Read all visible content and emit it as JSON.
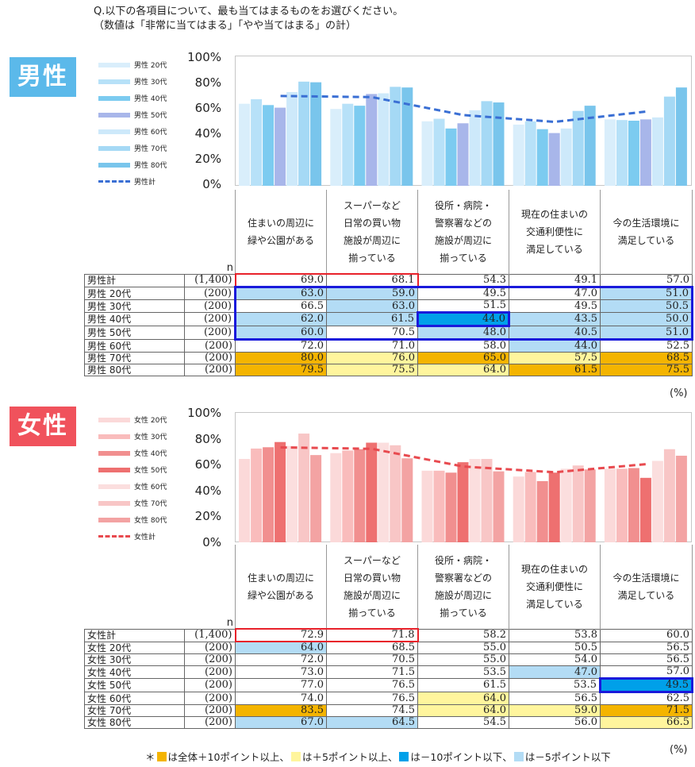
{
  "question": {
    "line1": "Q.以下の各項目について、最も当てはまるものをお選びください。",
    "line2": "（数値は「非常に当てはまる」「やや当てはまる」の計）"
  },
  "colors": {
    "male_badge": "#5bb9ea",
    "female_badge": "#f0525c",
    "plus10": "#f4b400",
    "plus5": "#fff59d",
    "minus10": "#00a0e9",
    "minus5": "#b3dcf5",
    "male_highlight": "#1a1adb",
    "total_highlight": "#e8212a",
    "male_line": "#3a6fd4",
    "female_line": "#e84a4f"
  },
  "male": {
    "badge": "男性",
    "legend": [
      "男性 20代",
      "男性 30代",
      "男性 40代",
      "男性 50代",
      "男性 60代",
      "男性 70代",
      "男性 80代",
      "男性計"
    ],
    "series_colors": [
      "#d9eefb",
      "#b7e1f8",
      "#7ccbf0",
      "#a8b6ea",
      "#cde9fa",
      "#a5d9f5",
      "#79c5ec"
    ],
    "header_n": "n",
    "unit": "(%)",
    "rows": [
      {
        "label": "男性計",
        "n": "(1,400)",
        "values": [
          "69.0",
          "68.1",
          "54.3",
          "49.1",
          "57.0"
        ],
        "cls": [
          "",
          "",
          "",
          "",
          ""
        ]
      },
      {
        "label": "男性 20代",
        "n": "(200)",
        "values": [
          "63.0",
          "59.0",
          "49.5",
          "47.0",
          "51.0"
        ],
        "cls": [
          "m5",
          "m5",
          "",
          "",
          "m5"
        ]
      },
      {
        "label": "男性 30代",
        "n": "(200)",
        "values": [
          "66.5",
          "63.0",
          "51.5",
          "49.5",
          "50.5"
        ],
        "cls": [
          "",
          "m5",
          "",
          "",
          "m5"
        ]
      },
      {
        "label": "男性 40代",
        "n": "(200)",
        "values": [
          "62.0",
          "61.5",
          "44.0",
          "43.5",
          "50.0"
        ],
        "cls": [
          "m5",
          "m5",
          "m10",
          "m5",
          "m5"
        ]
      },
      {
        "label": "男性 50代",
        "n": "(200)",
        "values": [
          "60.0",
          "70.5",
          "48.0",
          "40.5",
          "51.0"
        ],
        "cls": [
          "m5",
          "",
          "m5",
          "m5",
          "m5"
        ]
      },
      {
        "label": "男性 60代",
        "n": "(200)",
        "values": [
          "72.0",
          "71.0",
          "58.0",
          "44.0",
          "52.5"
        ],
        "cls": [
          "",
          "",
          "",
          "m5",
          ""
        ]
      },
      {
        "label": "男性 70代",
        "n": "(200)",
        "values": [
          "80.0",
          "76.0",
          "65.0",
          "57.5",
          "68.5"
        ],
        "cls": [
          "p10",
          "p5",
          "p10",
          "p5",
          "p10"
        ]
      },
      {
        "label": "男性 80代",
        "n": "(200)",
        "values": [
          "79.5",
          "75.5",
          "64.0",
          "61.5",
          "75.5"
        ],
        "cls": [
          "p10",
          "p5",
          "p5",
          "p10",
          "p10"
        ]
      }
    ]
  },
  "female": {
    "badge": "女性",
    "legend": [
      "女性 20代",
      "女性 30代",
      "女性 40代",
      "女性 50代",
      "女性 60代",
      "女性 70代",
      "女性 80代",
      "女性計"
    ],
    "series_colors": [
      "#fbd9d9",
      "#f9bcbc",
      "#f18f8f",
      "#ee7070",
      "#fbdede",
      "#f8c6c6",
      "#f3a3a3"
    ],
    "header_n": "n",
    "unit": "(%)",
    "rows": [
      {
        "label": "女性計",
        "n": "(1,400)",
        "values": [
          "72.9",
          "71.8",
          "58.2",
          "53.8",
          "60.0"
        ],
        "cls": [
          "",
          "",
          "",
          "",
          ""
        ]
      },
      {
        "label": "女性 20代",
        "n": "(200)",
        "values": [
          "64.0",
          "68.5",
          "55.0",
          "50.5",
          "56.5"
        ],
        "cls": [
          "m5",
          "",
          "",
          "",
          ""
        ]
      },
      {
        "label": "女性 30代",
        "n": "(200)",
        "values": [
          "72.0",
          "70.5",
          "55.0",
          "54.0",
          "56.5"
        ],
        "cls": [
          "",
          "",
          "",
          "",
          ""
        ]
      },
      {
        "label": "女性 40代",
        "n": "(200)",
        "values": [
          "73.0",
          "71.5",
          "53.5",
          "47.0",
          "57.0"
        ],
        "cls": [
          "",
          "",
          "",
          "m5",
          ""
        ]
      },
      {
        "label": "女性 50代",
        "n": "(200)",
        "values": [
          "77.0",
          "76.5",
          "61.5",
          "53.5",
          "49.5"
        ],
        "cls": [
          "",
          "",
          "",
          "",
          "m10"
        ]
      },
      {
        "label": "女性 60代",
        "n": "(200)",
        "values": [
          "74.0",
          "76.5",
          "64.0",
          "56.5",
          "62.5"
        ],
        "cls": [
          "",
          "",
          "p5",
          "",
          ""
        ]
      },
      {
        "label": "女性 70代",
        "n": "(200)",
        "values": [
          "83.5",
          "74.5",
          "64.0",
          "59.0",
          "71.5"
        ],
        "cls": [
          "p10",
          "",
          "p5",
          "p5",
          "p10"
        ]
      },
      {
        "label": "女性 80代",
        "n": "(200)",
        "values": [
          "67.0",
          "64.5",
          "54.5",
          "56.0",
          "66.5"
        ],
        "cls": [
          "m5",
          "m5",
          "",
          "",
          "p5"
        ]
      }
    ]
  },
  "categories": [
    [
      "住まいの周辺に",
      "緑や公園がある"
    ],
    [
      "スーパーなど",
      "日常の買い物",
      "施設が周辺に",
      "揃っている"
    ],
    [
      "役所・病院・",
      "警察署などの",
      "施設が周辺に",
      "揃っている"
    ],
    [
      "現在の住まいの",
      "交通利便性に",
      "満足している"
    ],
    [
      "今の生活環境に",
      "満足している"
    ]
  ],
  "footnote": {
    "prefix": "＊",
    "t1": "は全体＋10ポイント以上、",
    "t2": "は＋5ポイント以上、",
    "t3": "は－10ポイント以下、",
    "t4": "は－5ポイント以下"
  },
  "chart_data": [
    {
      "type": "bar",
      "title": "男性",
      "categories": [
        "住まいの周辺に緑や公園がある",
        "スーパーなど日常の買い物施設が周辺に揃っている",
        "役所・病院・警察署などの施設が周辺に揃っている",
        "現在の住まいの交通利便性に満足している",
        "今の生活環境に満足している"
      ],
      "yticks": [
        "0%",
        "20%",
        "40%",
        "60%",
        "80%",
        "100%"
      ],
      "ylim": [
        0,
        100
      ],
      "series": [
        {
          "name": "男性 20代",
          "values": [
            63.0,
            59.0,
            49.5,
            47.0,
            51.0
          ]
        },
        {
          "name": "男性 30代",
          "values": [
            66.5,
            63.0,
            51.5,
            49.5,
            50.5
          ]
        },
        {
          "name": "男性 40代",
          "values": [
            62.0,
            61.5,
            44.0,
            43.5,
            50.0
          ]
        },
        {
          "name": "男性 50代",
          "values": [
            60.0,
            70.5,
            48.0,
            40.5,
            51.0
          ]
        },
        {
          "name": "男性 60代",
          "values": [
            72.0,
            71.0,
            58.0,
            44.0,
            52.5
          ]
        },
        {
          "name": "男性 70代",
          "values": [
            80.0,
            76.0,
            65.0,
            57.5,
            68.5
          ]
        },
        {
          "name": "男性 80代",
          "values": [
            79.5,
            75.5,
            64.0,
            61.5,
            75.5
          ]
        },
        {
          "name": "男性計",
          "type": "line",
          "values": [
            69.0,
            68.1,
            54.3,
            49.1,
            57.0
          ]
        }
      ]
    },
    {
      "type": "bar",
      "title": "女性",
      "categories": [
        "住まいの周辺に緑や公園がある",
        "スーパーなど日常の買い物施設が周辺に揃っている",
        "役所・病院・警察署などの施設が周辺に揃っている",
        "現在の住まいの交通利便性に満足している",
        "今の生活環境に満足している"
      ],
      "yticks": [
        "0%",
        "20%",
        "40%",
        "60%",
        "80%",
        "100%"
      ],
      "ylim": [
        0,
        100
      ],
      "series": [
        {
          "name": "女性 20代",
          "values": [
            64.0,
            68.5,
            55.0,
            50.5,
            56.5
          ]
        },
        {
          "name": "女性 30代",
          "values": [
            72.0,
            70.5,
            55.0,
            54.0,
            56.5
          ]
        },
        {
          "name": "女性 40代",
          "values": [
            73.0,
            71.5,
            53.5,
            47.0,
            57.0
          ]
        },
        {
          "name": "女性 50代",
          "values": [
            77.0,
            76.5,
            61.5,
            53.5,
            49.5
          ]
        },
        {
          "name": "女性 60代",
          "values": [
            74.0,
            76.5,
            64.0,
            56.5,
            62.5
          ]
        },
        {
          "name": "女性 70代",
          "values": [
            83.5,
            74.5,
            64.0,
            59.0,
            71.5
          ]
        },
        {
          "name": "女性 80代",
          "values": [
            67.0,
            64.5,
            54.5,
            56.0,
            66.5
          ]
        },
        {
          "name": "女性計",
          "type": "line",
          "values": [
            72.9,
            71.8,
            58.2,
            53.8,
            60.0
          ]
        }
      ]
    }
  ]
}
